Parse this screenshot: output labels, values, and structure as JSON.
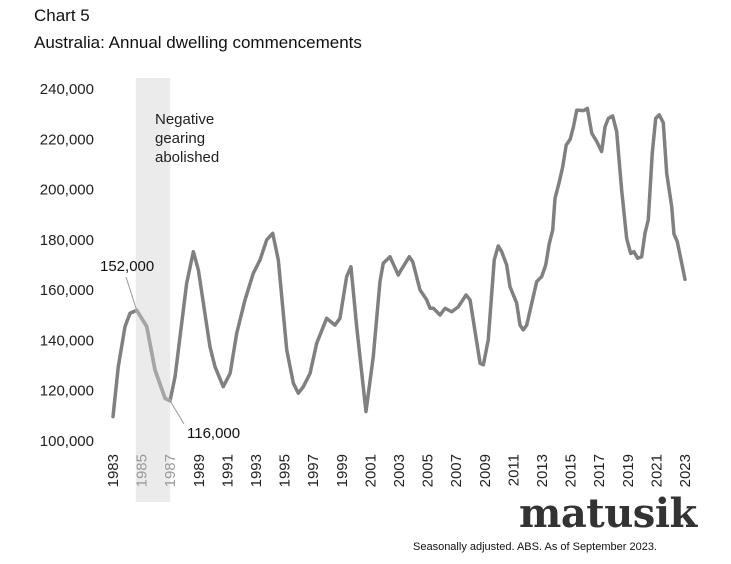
{
  "chart_data": {
    "type": "line",
    "title": "Chart 5",
    "subtitle": "Australia:  Annual dwelling commencements",
    "xlabel": "",
    "ylabel": "",
    "ylim": [
      100000,
      240000
    ],
    "xlim": [
      1983,
      2023
    ],
    "yticks": [
      "100,000",
      "120,000",
      "140,000",
      "160,000",
      "180,000",
      "200,000",
      "220,000",
      "240,000"
    ],
    "ytick_values": [
      100000,
      120000,
      140000,
      160000,
      180000,
      200000,
      220000,
      240000
    ],
    "xticks": [
      "1983",
      "1985",
      "1987",
      "1989",
      "1991",
      "1993",
      "1995",
      "1997",
      "1999",
      "2001",
      "2003",
      "2005",
      "2007",
      "2009",
      "2011",
      "2013",
      "2015",
      "2017",
      "2019",
      "2021",
      "2023"
    ],
    "grid": false,
    "line_color": "#808080",
    "highlight_color": "#a6a6a6",
    "band_color": "#ebebeb",
    "shaded_period": {
      "from": 1984.6,
      "to": 1987.0,
      "label": "Negative gearing abolished"
    },
    "annotations": [
      {
        "text": "152,000",
        "x": 1984.66,
        "y": 152000
      },
      {
        "text": "116,000",
        "x": 1986.99,
        "y": 116000
      }
    ],
    "x": [
      1983.0,
      1983.37,
      1983.84,
      1984.19,
      1984.66,
      1985.36,
      1985.94,
      1986.64,
      1986.99,
      1987.34,
      1988.15,
      1988.62,
      1988.97,
      1989.78,
      1990.13,
      1990.71,
      1991.19,
      1991.65,
      1992.23,
      1992.81,
      1993.28,
      1993.75,
      1994.17,
      1994.56,
      1995.15,
      1995.61,
      1995.96,
      1996.31,
      1996.78,
      1997.24,
      1997.94,
      1998.52,
      1998.87,
      1999.34,
      1999.64,
      2000.04,
      2000.69,
      2001.2,
      2001.67,
      2001.9,
      2002.37,
      2002.95,
      2003.07,
      2003.72,
      2003.96,
      2004.47,
      2004.94,
      2005.17,
      2005.4,
      2005.87,
      2006.22,
      2006.69,
      2007.15,
      2007.69,
      2007.97,
      2008.67,
      2008.9,
      2009.24,
      2009.66,
      2009.94,
      2010.18,
      2010.53,
      2010.76,
      2011.23,
      2011.46,
      2011.69,
      2011.93,
      2012.63,
      2012.98,
      2013.26,
      2013.51,
      2013.75,
      2013.91,
      2014.21,
      2014.45,
      2014.69,
      2014.97,
      2015.2,
      2015.43,
      2015.9,
      2016.17,
      2016.48,
      2016.83,
      2017.17,
      2017.41,
      2017.64,
      2017.94,
      2018.22,
      2018.57,
      2018.92,
      2019.2,
      2019.43,
      2019.69,
      2019.97,
      2020.2,
      2020.43,
      2020.71,
      2020.95,
      2021.2,
      2021.48,
      2021.72,
      2022.07,
      2022.23,
      2022.46,
      2022.77,
      2023.0
    ],
    "values": [
      109700,
      129600,
      145500,
      150800,
      152000,
      145500,
      128200,
      117000,
      116000,
      125600,
      162700,
      175300,
      168000,
      137500,
      129600,
      121600,
      126900,
      142800,
      156100,
      166700,
      172000,
      180000,
      182600,
      172000,
      136200,
      123000,
      119000,
      121600,
      126900,
      138800,
      148800,
      146100,
      148800,
      165400,
      169300,
      145500,
      111700,
      133500,
      163400,
      170700,
      173300,
      166000,
      167300,
      173300,
      171300,
      160100,
      156100,
      152800,
      152800,
      150100,
      152800,
      151400,
      153400,
      158100,
      156100,
      130900,
      130300,
      140200,
      172000,
      177600,
      175300,
      170000,
      161400,
      154800,
      146100,
      144200,
      146100,
      163400,
      165400,
      170000,
      178600,
      183900,
      196500,
      203100,
      209100,
      217700,
      220000,
      225000,
      231600,
      231400,
      232300,
      222400,
      219100,
      215100,
      225000,
      228300,
      229300,
      223100,
      199800,
      180600,
      174600,
      175300,
      172700,
      173300,
      182600,
      187900,
      214400,
      228300,
      229700,
      226600,
      206500,
      193200,
      182300,
      179300,
      170700,
      164300
    ]
  },
  "logo": "matusik",
  "footnote": "Seasonally adjusted.  ABS.  As of September 2023."
}
